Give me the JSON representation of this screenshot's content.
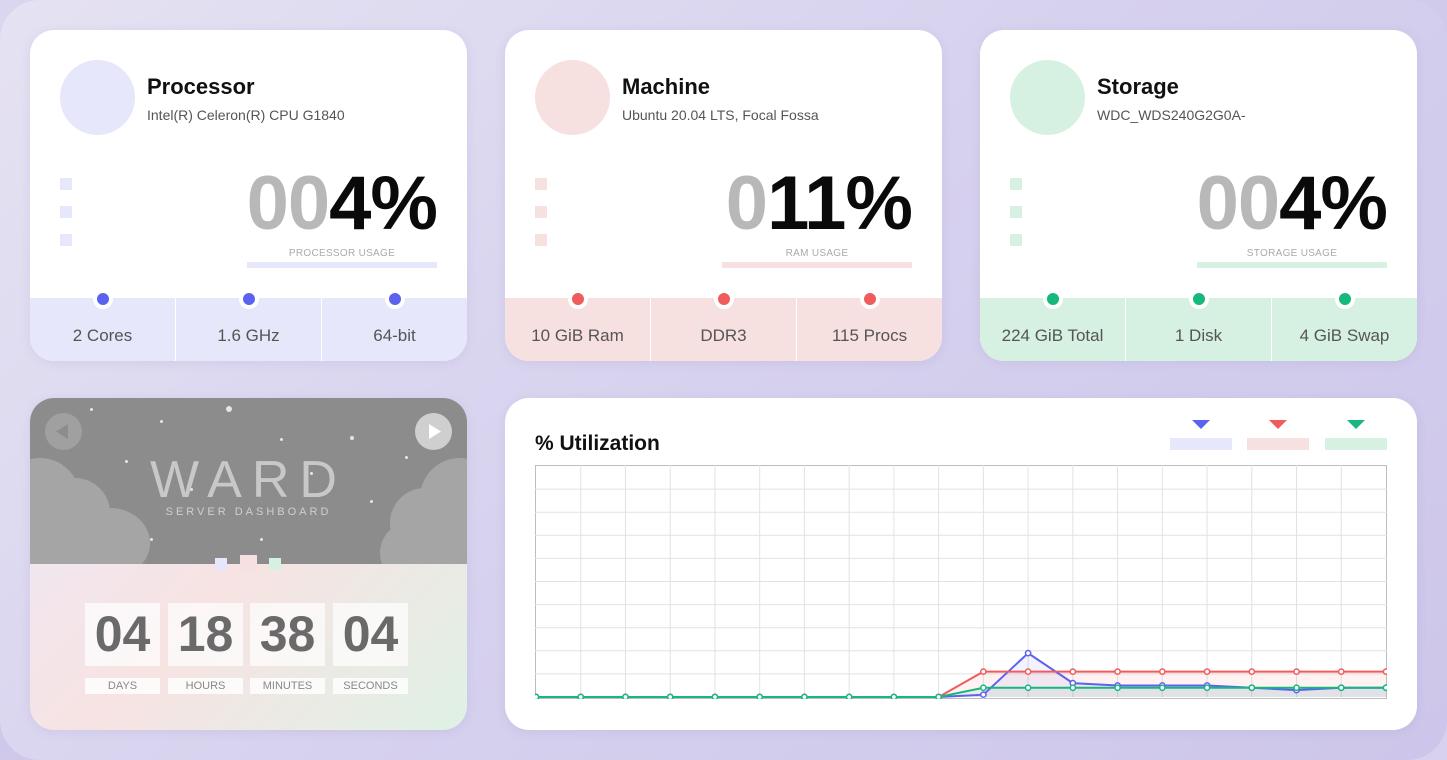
{
  "cards": {
    "processor": {
      "title": "Processor",
      "subtitle": "Intel(R) Celeron(R) CPU G1840",
      "usage_dim": "00",
      "usage_value": "4%",
      "usage_label": "PROCESSOR USAGE",
      "stats": [
        "2 Cores",
        "1.6 GHz",
        "64-bit"
      ]
    },
    "machine": {
      "title": "Machine",
      "subtitle": "Ubuntu 20.04 LTS, Focal Fossa",
      "usage_dim": "0",
      "usage_value": "11%",
      "usage_label": "RAM USAGE",
      "stats": [
        "10 GiB Ram",
        "DDR3",
        "115 Procs"
      ]
    },
    "storage": {
      "title": "Storage",
      "subtitle": "WDC_WDS240G2G0A-",
      "usage_dim": "00",
      "usage_value": "4%",
      "usage_label": "STORAGE USAGE",
      "stats": [
        "224 GiB Total",
        "1 Disk",
        "4 GiB Swap"
      ]
    }
  },
  "colors": {
    "processor_light": "#e6e7fb",
    "processor_accent": "#5b62f0",
    "machine_light": "#f7e0e0",
    "machine_accent": "#f05b5b",
    "storage_light": "#d6f1e2",
    "storage_accent": "#16b87e"
  },
  "ward": {
    "title": "WARD",
    "subtitle": "SERVER DASHBOARD",
    "prev_icon": "chevron-left-icon",
    "next_icon": "chevron-right-icon",
    "countdown": [
      {
        "value": "04",
        "label": "DAYS"
      },
      {
        "value": "18",
        "label": "HOURS"
      },
      {
        "value": "38",
        "label": "MINUTES"
      },
      {
        "value": "04",
        "label": "SECONDS"
      }
    ]
  },
  "chart_data": {
    "type": "line",
    "title": "% Utilization",
    "xlabel": "",
    "ylabel": "",
    "ylim": [
      0,
      100
    ],
    "grid": true,
    "legend": "top-right",
    "x": [
      0,
      1,
      2,
      3,
      4,
      5,
      6,
      7,
      8,
      9,
      10,
      11,
      12,
      13,
      14,
      15,
      16,
      17,
      18,
      19
    ],
    "series": [
      {
        "key": "processor",
        "color": "#5b62f0",
        "values": [
          0,
          0,
          0,
          0,
          0,
          0,
          0,
          0,
          0,
          0,
          1,
          19,
          6,
          5,
          5,
          5,
          4,
          3,
          4,
          4
        ]
      },
      {
        "key": "machine",
        "color": "#f05b5b",
        "values": [
          0,
          0,
          0,
          0,
          0,
          0,
          0,
          0,
          0,
          0,
          11,
          11,
          11,
          11,
          11,
          11,
          11,
          11,
          11,
          11
        ]
      },
      {
        "key": "storage",
        "color": "#16b87e",
        "values": [
          0,
          0,
          0,
          0,
          0,
          0,
          0,
          0,
          0,
          0,
          4,
          4,
          4,
          4,
          4,
          4,
          4,
          4,
          4,
          4
        ]
      }
    ]
  }
}
